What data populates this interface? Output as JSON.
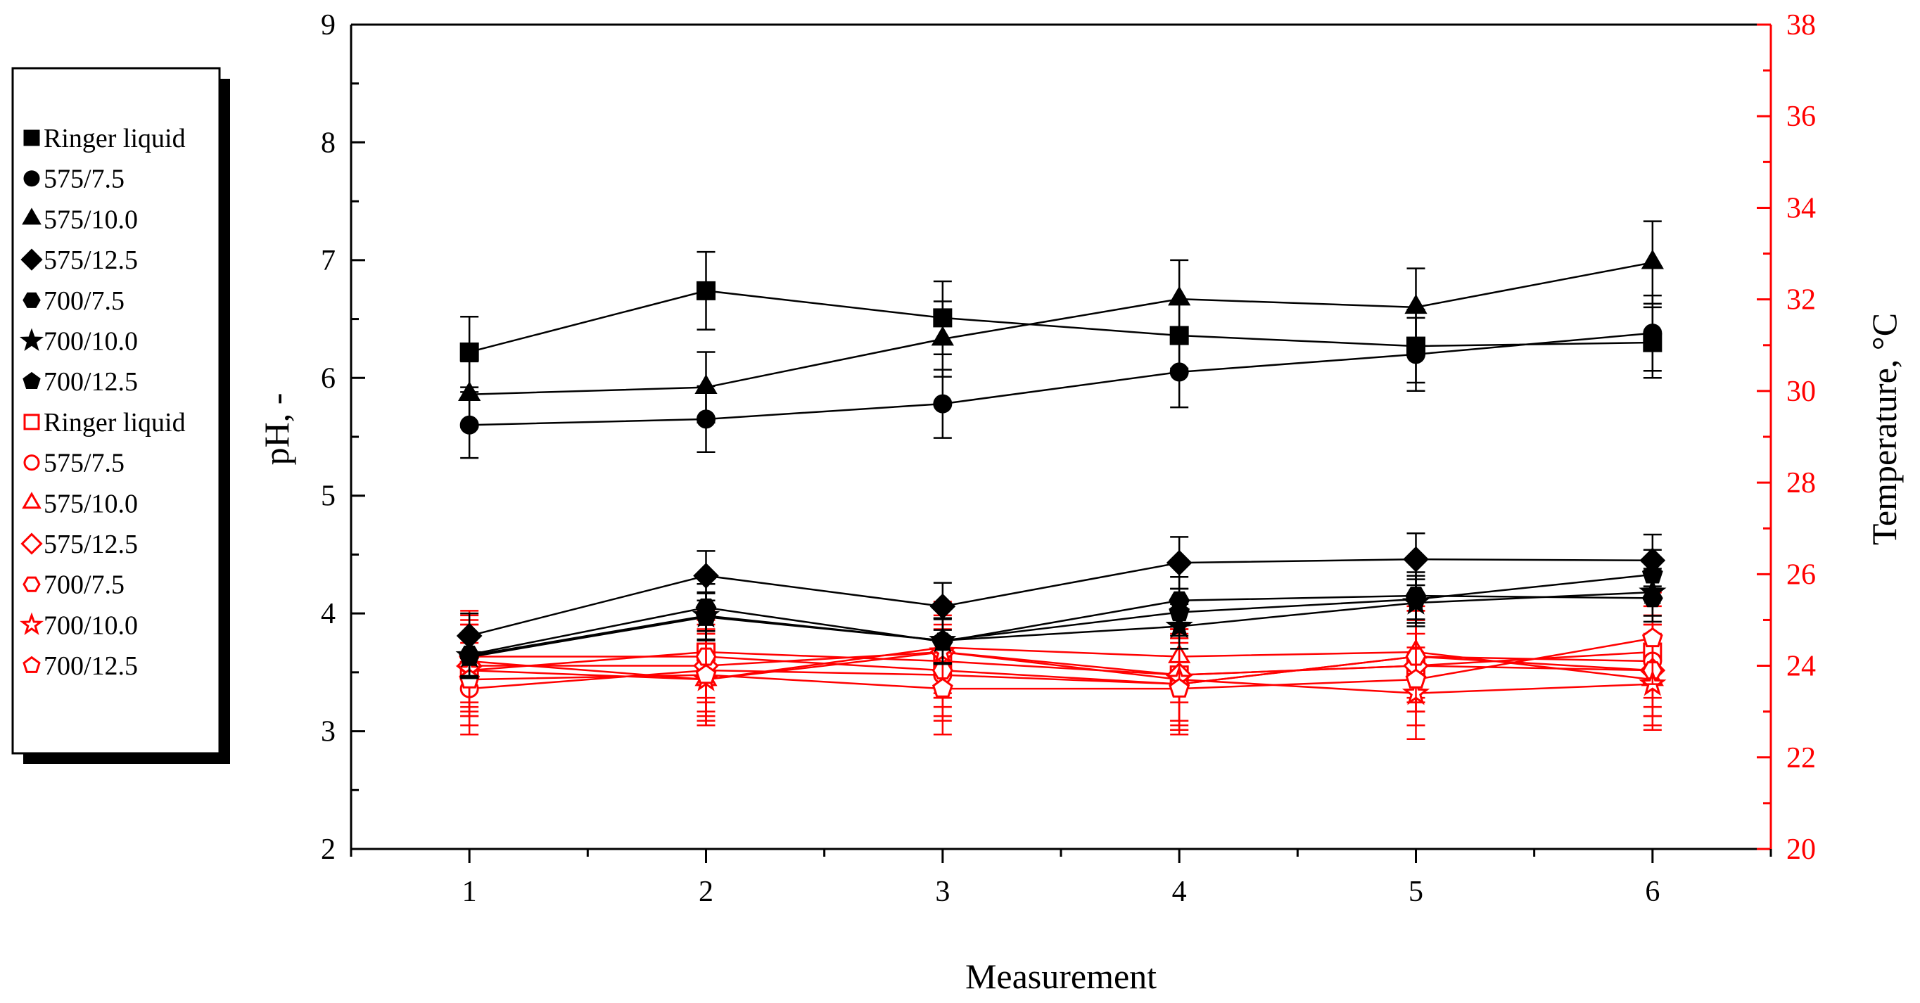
{
  "chart_data": {
    "type": "line",
    "title": "",
    "xlabel": "Measurement",
    "ylabel": "pH, -",
    "y2label": "Temperature, °C",
    "x": [
      1,
      2,
      3,
      4,
      5,
      6
    ],
    "xlim": [
      0.5,
      6.5
    ],
    "ylim": [
      2,
      9
    ],
    "y2lim": [
      20,
      38
    ],
    "xticks": [
      "1",
      "2",
      "3",
      "4",
      "5",
      "6"
    ],
    "yticks": [
      "2",
      "3",
      "4",
      "5",
      "6",
      "7",
      "8",
      "9"
    ],
    "y2ticks": [
      "20",
      "22",
      "24",
      "26",
      "28",
      "30",
      "32",
      "34",
      "36",
      "38"
    ],
    "legend_position": "left",
    "colors": {
      "ph": "#000000",
      "temperature": "#ff0000"
    },
    "series": [
      {
        "name": "Ringer liquid",
        "axis": "left",
        "marker": "square",
        "filled": true,
        "values": [
          6.22,
          6.74,
          6.51,
          6.36,
          6.27,
          6.3
        ],
        "error": [
          0.3,
          0.33,
          0.31,
          0.28,
          0.31,
          0.3
        ]
      },
      {
        "name": "575/7.5",
        "axis": "left",
        "marker": "circle",
        "filled": true,
        "values": [
          5.6,
          5.65,
          5.78,
          6.05,
          6.2,
          6.38
        ],
        "error": [
          0.28,
          0.28,
          0.29,
          0.3,
          0.31,
          0.32
        ]
      },
      {
        "name": "575/10.0",
        "axis": "left",
        "marker": "triangle",
        "filled": true,
        "values": [
          5.86,
          5.92,
          6.33,
          6.67,
          6.6,
          6.98
        ],
        "error": [
          0.28,
          0.3,
          0.32,
          0.33,
          0.33,
          0.35
        ]
      },
      {
        "name": "575/12.5",
        "axis": "left",
        "marker": "diamond",
        "filled": true,
        "values": [
          3.81,
          4.32,
          4.06,
          4.43,
          4.46,
          4.45
        ],
        "error": [
          0.19,
          0.21,
          0.2,
          0.22,
          0.22,
          0.22
        ]
      },
      {
        "name": "700/7.5",
        "axis": "left",
        "marker": "hexagon",
        "filled": true,
        "values": [
          3.65,
          4.05,
          3.76,
          4.11,
          4.15,
          4.13
        ],
        "error": [
          0.18,
          0.2,
          0.19,
          0.2,
          0.2,
          0.2
        ]
      },
      {
        "name": "700/10.0",
        "axis": "left",
        "marker": "star",
        "filled": true,
        "values": [
          3.64,
          3.98,
          3.77,
          3.89,
          4.09,
          4.18
        ],
        "error": [
          0.18,
          0.2,
          0.19,
          0.19,
          0.2,
          0.2
        ]
      },
      {
        "name": "700/12.5",
        "axis": "left",
        "marker": "pentagon",
        "filled": true,
        "values": [
          3.63,
          3.97,
          3.77,
          4.01,
          4.12,
          4.33
        ],
        "error": [
          0.18,
          0.2,
          0.19,
          0.2,
          0.2,
          0.21
        ]
      },
      {
        "name": "Ringer liquid",
        "axis": "right",
        "marker": "square",
        "filled": false,
        "values": [
          23.9,
          24.3,
          24.1,
          23.8,
          24.0,
          24.3
        ],
        "error": [
          1.0,
          1.0,
          1.0,
          1.0,
          1.0,
          1.0
        ]
      },
      {
        "name": "575/7.5",
        "axis": "right",
        "marker": "circle",
        "filled": false,
        "values": [
          23.5,
          23.9,
          23.8,
          23.6,
          24.2,
          24.1
        ],
        "error": [
          1.0,
          1.0,
          1.0,
          1.0,
          1.0,
          1.0
        ]
      },
      {
        "name": "575/10.0",
        "axis": "right",
        "marker": "triangle",
        "filled": false,
        "values": [
          24.1,
          23.7,
          24.4,
          24.2,
          24.3,
          23.7
        ],
        "error": [
          1.0,
          1.0,
          1.0,
          1.0,
          1.0,
          1.0
        ]
      },
      {
        "name": "575/12.5",
        "axis": "right",
        "marker": "diamond",
        "filled": false,
        "values": [
          24.0,
          24.0,
          24.3,
          23.8,
          24.0,
          23.9
        ],
        "error": [
          1.0,
          1.0,
          1.0,
          1.0,
          1.0,
          1.0
        ]
      },
      {
        "name": "700/7.5",
        "axis": "right",
        "marker": "hexagon",
        "filled": false,
        "values": [
          24.2,
          24.2,
          23.9,
          23.6,
          24.2,
          23.9
        ],
        "error": [
          1.0,
          1.0,
          1.0,
          1.0,
          1.0,
          1.0
        ]
      },
      {
        "name": "700/10.0",
        "axis": "right",
        "marker": "star",
        "filled": false,
        "values": [
          23.9,
          23.7,
          24.3,
          23.7,
          23.4,
          23.6
        ],
        "error": [
          1.0,
          1.0,
          1.0,
          1.0,
          1.0,
          1.0
        ]
      },
      {
        "name": "700/12.5",
        "axis": "right",
        "marker": "pentagon",
        "filled": false,
        "values": [
          23.7,
          23.8,
          23.5,
          23.5,
          23.7,
          24.6
        ],
        "error": [
          1.0,
          1.0,
          1.0,
          1.0,
          1.0,
          1.0
        ]
      }
    ]
  }
}
